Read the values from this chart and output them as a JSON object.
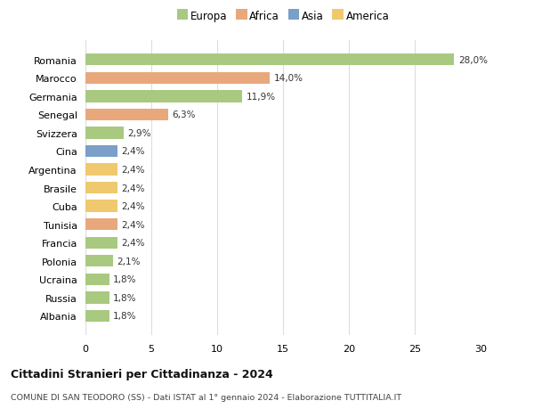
{
  "categories": [
    "Albania",
    "Russia",
    "Ucraina",
    "Polonia",
    "Francia",
    "Tunisia",
    "Cuba",
    "Brasile",
    "Argentina",
    "Cina",
    "Svizzera",
    "Senegal",
    "Germania",
    "Marocco",
    "Romania"
  ],
  "values": [
    1.8,
    1.8,
    1.8,
    2.1,
    2.4,
    2.4,
    2.4,
    2.4,
    2.4,
    2.4,
    2.9,
    6.3,
    11.9,
    14.0,
    28.0
  ],
  "labels": [
    "1,8%",
    "1,8%",
    "1,8%",
    "2,1%",
    "2,4%",
    "2,4%",
    "2,4%",
    "2,4%",
    "2,4%",
    "2,4%",
    "2,9%",
    "6,3%",
    "11,9%",
    "14,0%",
    "28,0%"
  ],
  "colors": [
    "#a8c97f",
    "#a8c97f",
    "#a8c97f",
    "#a8c97f",
    "#a8c97f",
    "#e8a87c",
    "#f0c96e",
    "#f0c96e",
    "#f0c96e",
    "#7a9fc9",
    "#a8c97f",
    "#e8a87c",
    "#a8c97f",
    "#e8a87c",
    "#a8c97f"
  ],
  "legend_labels": [
    "Europa",
    "Africa",
    "Asia",
    "America"
  ],
  "legend_colors": [
    "#a8c97f",
    "#e8a87c",
    "#7a9fc9",
    "#f0c96e"
  ],
  "title1": "Cittadini Stranieri per Cittadinanza - 2024",
  "title2": "COMUNE DI SAN TEODORO (SS) - Dati ISTAT al 1° gennaio 2024 - Elaborazione TUTTITALIA.IT",
  "xlim": [
    0,
    30
  ],
  "xticks": [
    0,
    5,
    10,
    15,
    20,
    25,
    30
  ],
  "background_color": "#ffffff",
  "grid_color": "#dddddd"
}
